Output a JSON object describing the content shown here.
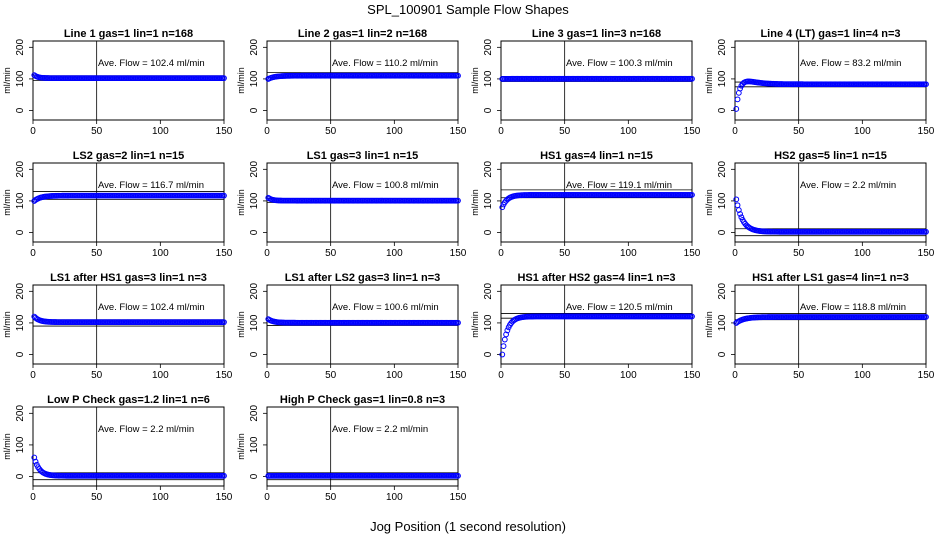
{
  "figure": {
    "title": "SPL_100901  Sample Flow Shapes",
    "xlabel": "Jog Position (1 second resolution)"
  },
  "chart_data": [
    {
      "type": "scatter",
      "title": "Line 1 gas=1 lin=1 n=168",
      "ylabel": "ml/min",
      "annotation": "Ave. Flow =  102.4  ml/min",
      "xlim": [
        0,
        150
      ],
      "ylim": [
        -30,
        220
      ],
      "xticks": [
        0,
        50,
        100,
        150
      ],
      "yticks": [
        0,
        100,
        200
      ],
      "vline_x": 50,
      "hlines": [
        110,
        95
      ],
      "shape": {
        "start": 112,
        "level": 102.4,
        "tau": 3
      }
    },
    {
      "type": "scatter",
      "title": "Line 2 gas=1 lin=2 n=168",
      "ylabel": "ml/min",
      "annotation": "Ave. Flow =  110.2  ml/min",
      "xlim": [
        0,
        150
      ],
      "ylim": [
        -30,
        220
      ],
      "xticks": [
        0,
        50,
        100,
        150
      ],
      "yticks": [
        0,
        100,
        200
      ],
      "vline_x": 50,
      "hlines": [
        120,
        105
      ],
      "shape": {
        "start": 100,
        "level": 110.2,
        "tau": 5
      }
    },
    {
      "type": "scatter",
      "title": "Line 3 gas=1 lin=3 n=168",
      "ylabel": "ml/min",
      "annotation": "Ave. Flow =  100.3  ml/min",
      "xlim": [
        0,
        150
      ],
      "ylim": [
        -30,
        220
      ],
      "xticks": [
        0,
        50,
        100,
        150
      ],
      "yticks": [
        0,
        100,
        200
      ],
      "vline_x": 50,
      "hlines": [
        108,
        92
      ],
      "shape": {
        "start": 100,
        "level": 100.3,
        "tau": 3
      }
    },
    {
      "type": "scatter",
      "title": "Line 4 (LT) gas=1 lin=4 n=3",
      "ylabel": "ml/min",
      "annotation": "Ave. Flow =  83.2  ml/min",
      "xlim": [
        0,
        150
      ],
      "ylim": [
        -30,
        220
      ],
      "xticks": [
        0,
        50,
        100,
        150
      ],
      "yticks": [
        0,
        100,
        200
      ],
      "vline_x": 50,
      "hlines": [
        90,
        75
      ],
      "shape": {
        "start": 5,
        "level": 83.2,
        "tau": 2.5,
        "overshoot": 12
      }
    },
    {
      "type": "scatter",
      "title": "LS2 gas=2 lin=1 n=15",
      "ylabel": "ml/min",
      "annotation": "Ave. Flow =  116.7  ml/min",
      "xlim": [
        0,
        150
      ],
      "ylim": [
        -30,
        220
      ],
      "xticks": [
        0,
        50,
        100,
        150
      ],
      "yticks": [
        0,
        100,
        200
      ],
      "vline_x": 50,
      "hlines": [
        130,
        105
      ],
      "shape": {
        "start": 100,
        "level": 116.7,
        "tau": 5
      }
    },
    {
      "type": "scatter",
      "title": "LS1 gas=3 lin=1 n=15",
      "ylabel": "ml/min",
      "annotation": "Ave. Flow =  100.8  ml/min",
      "xlim": [
        0,
        150
      ],
      "ylim": [
        -30,
        220
      ],
      "xticks": [
        0,
        50,
        100,
        150
      ],
      "yticks": [
        0,
        100,
        200
      ],
      "vline_x": 50,
      "hlines": [
        108,
        95
      ],
      "shape": {
        "start": 110,
        "level": 100.8,
        "tau": 3
      }
    },
    {
      "type": "scatter",
      "title": "HS1 gas=4 lin=1 n=15",
      "ylabel": "ml/min",
      "annotation": "Ave. Flow =  119.1  ml/min",
      "xlim": [
        0,
        150
      ],
      "ylim": [
        -30,
        220
      ],
      "xticks": [
        0,
        50,
        100,
        150
      ],
      "yticks": [
        0,
        100,
        200
      ],
      "vline_x": 50,
      "hlines": [
        135,
        110
      ],
      "shape": {
        "start": 80,
        "level": 119.1,
        "tau": 4
      }
    },
    {
      "type": "scatter",
      "title": "HS2 gas=5 lin=1 n=15",
      "ylabel": "ml/min",
      "annotation": "Ave. Flow =  2.2  ml/min",
      "xlim": [
        0,
        150
      ],
      "ylim": [
        -30,
        220
      ],
      "xticks": [
        0,
        50,
        100,
        150
      ],
      "yticks": [
        0,
        100,
        200
      ],
      "vline_x": 50,
      "hlines": [
        12,
        -10
      ],
      "shape": {
        "start": 105,
        "level": 2.2,
        "tau": 5
      }
    },
    {
      "type": "scatter",
      "title": "LS1 after HS1 gas=3 lin=1 n=3",
      "ylabel": "ml/min",
      "annotation": "Ave. Flow =  102.4  ml/min",
      "xlim": [
        0,
        150
      ],
      "ylim": [
        -30,
        220
      ],
      "xticks": [
        0,
        50,
        100,
        150
      ],
      "yticks": [
        0,
        100,
        200
      ],
      "vline_x": 50,
      "hlines": [
        110,
        90
      ],
      "shape": {
        "start": 120,
        "level": 102.4,
        "tau": 4
      }
    },
    {
      "type": "scatter",
      "title": "LS1 after LS2 gas=3 lin=1 n=3",
      "ylabel": "ml/min",
      "annotation": "Ave. Flow =  100.6  ml/min",
      "xlim": [
        0,
        150
      ],
      "ylim": [
        -30,
        220
      ],
      "xticks": [
        0,
        50,
        100,
        150
      ],
      "yticks": [
        0,
        100,
        200
      ],
      "vline_x": 50,
      "hlines": [
        108,
        92
      ],
      "shape": {
        "start": 112,
        "level": 100.6,
        "tau": 4
      }
    },
    {
      "type": "scatter",
      "title": "HS1 after HS2 gas=4 lin=1 n=3",
      "ylabel": "ml/min",
      "annotation": "Ave. Flow =  120.5  ml/min",
      "xlim": [
        0,
        150
      ],
      "ylim": [
        -30,
        220
      ],
      "xticks": [
        0,
        50,
        100,
        150
      ],
      "yticks": [
        0,
        100,
        200
      ],
      "vline_x": 50,
      "hlines": [
        130,
        115
      ],
      "shape": {
        "start": 0,
        "level": 120.5,
        "tau": 4
      }
    },
    {
      "type": "scatter",
      "title": "HS1 after LS1 gas=4 lin=1 n=3",
      "ylabel": "ml/min",
      "annotation": "Ave. Flow =  118.8  ml/min",
      "xlim": [
        0,
        150
      ],
      "ylim": [
        -30,
        220
      ],
      "xticks": [
        0,
        50,
        100,
        150
      ],
      "yticks": [
        0,
        100,
        200
      ],
      "vline_x": 50,
      "hlines": [
        130,
        110
      ],
      "shape": {
        "start": 100,
        "level": 118.8,
        "tau": 6
      }
    },
    {
      "type": "scatter",
      "title": "Low P Check gas=1.2 lin=1 n=6",
      "ylabel": "ml/min",
      "annotation": "Ave. Flow =  2.2  ml/min",
      "xlim": [
        0,
        150
      ],
      "ylim": [
        -30,
        220
      ],
      "xticks": [
        0,
        50,
        100,
        150
      ],
      "yticks": [
        0,
        100,
        200
      ],
      "vline_x": 50,
      "hlines": [
        12,
        -10
      ],
      "shape": {
        "start": 60,
        "level": 2.2,
        "tau": 4
      }
    },
    {
      "type": "scatter",
      "title": "High P Check gas=1 lin=0.8 n=3",
      "ylabel": "ml/min",
      "annotation": "Ave. Flow =  2.2  ml/min",
      "xlim": [
        0,
        150
      ],
      "ylim": [
        -30,
        220
      ],
      "xticks": [
        0,
        50,
        100,
        150
      ],
      "yticks": [
        0,
        100,
        200
      ],
      "vline_x": 50,
      "hlines": [
        12,
        -10
      ],
      "shape": {
        "start": 2,
        "level": 2.2,
        "tau": 3
      }
    }
  ],
  "colors": {
    "points": "#0000ff",
    "lines": "#000000"
  }
}
